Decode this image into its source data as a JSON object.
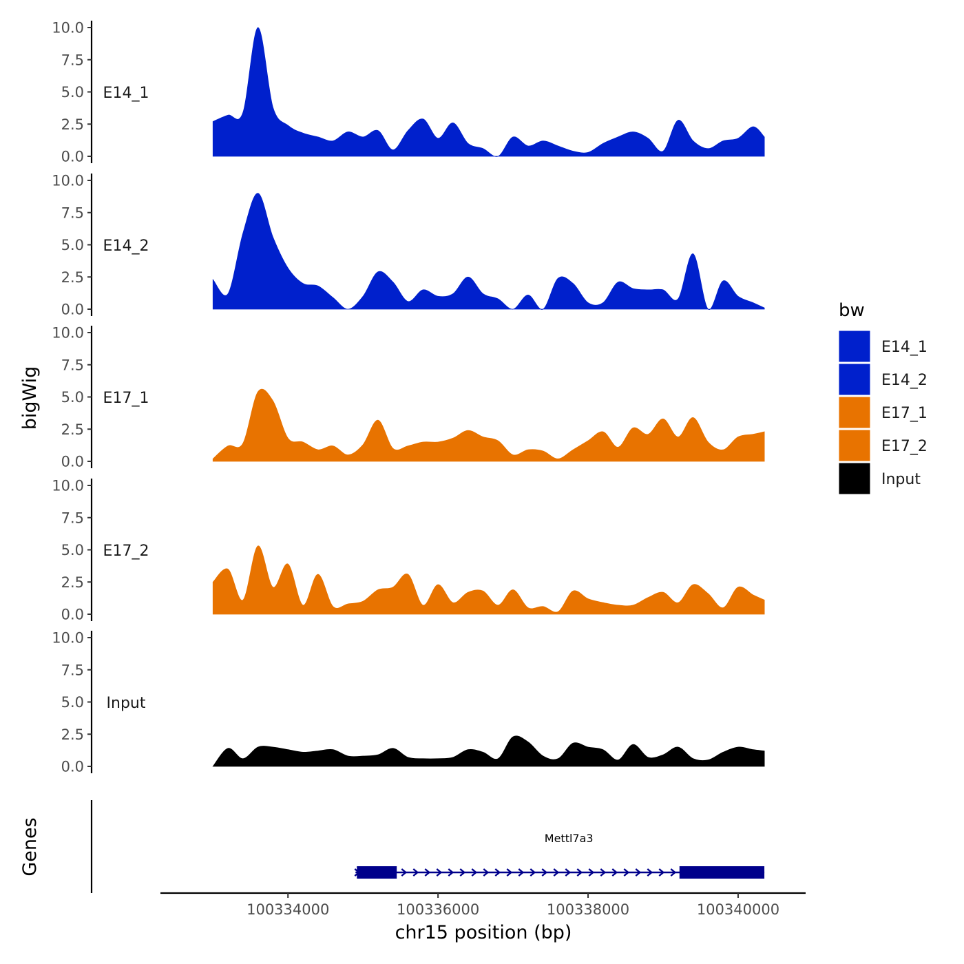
{
  "chart_data": {
    "type": "area",
    "title": "",
    "ylabel": "bigWig",
    "xlabel": "chr15 position (bp)",
    "ylim": [
      0,
      10
    ],
    "y_ticks": [
      "0.0",
      "2.5",
      "5.0",
      "7.5",
      "10.0"
    ],
    "y_tick_values": [
      0,
      2.5,
      5,
      7.5,
      10
    ],
    "xlim": [
      100332300,
      100340900
    ],
    "x_ticks": [
      100334000,
      100336000,
      100338000,
      100340000
    ],
    "x_tick_labels": [
      "100334000",
      "100336000",
      "100338000",
      "100340000"
    ],
    "legend": {
      "title": "bw",
      "position": "right",
      "entries": [
        {
          "label": "E14_1",
          "color": "#0020cc"
        },
        {
          "label": "E14_2",
          "color": "#0020cc"
        },
        {
          "label": "E17_1",
          "color": "#e87300"
        },
        {
          "label": "E17_2",
          "color": "#e87300"
        },
        {
          "label": "Input",
          "color": "#000000"
        }
      ]
    },
    "x": [
      100333000,
      100333200,
      100333400,
      100333600,
      100333800,
      100334000,
      100334200,
      100334400,
      100334600,
      100334800,
      100335000,
      100335200,
      100335400,
      100335600,
      100335800,
      100336000,
      100336200,
      100336400,
      100336600,
      100336800,
      100337000,
      100337200,
      100337400,
      100337600,
      100337800,
      100338000,
      100338200,
      100338400,
      100338600,
      100338800,
      100339000,
      100339200,
      100339400,
      100339600,
      100339800,
      100340000,
      100340200,
      100340350
    ],
    "series": [
      {
        "name": "E14_1",
        "color": "#0020cc",
        "values": [
          2.7,
          3.2,
          3.4,
          10.0,
          3.8,
          2.4,
          1.8,
          1.5,
          1.2,
          1.9,
          1.5,
          2.0,
          0.5,
          2.0,
          2.9,
          1.4,
          2.6,
          1.0,
          0.6,
          0.0,
          1.5,
          0.8,
          1.2,
          0.8,
          0.4,
          0.3,
          1.0,
          1.5,
          1.9,
          1.4,
          0.4,
          2.8,
          1.2,
          0.6,
          1.2,
          1.4,
          2.3,
          1.5
        ]
      },
      {
        "name": "E14_2",
        "color": "#0020cc",
        "values": [
          2.3,
          1.2,
          5.9,
          9.0,
          5.6,
          3.2,
          2.0,
          1.8,
          0.9,
          0.0,
          1.0,
          2.9,
          2.1,
          0.6,
          1.5,
          1.0,
          1.2,
          2.5,
          1.2,
          0.8,
          0.0,
          1.1,
          0.0,
          2.4,
          2.0,
          0.5,
          0.5,
          2.1,
          1.6,
          1.5,
          1.5,
          0.8,
          4.3,
          0.0,
          2.2,
          1.0,
          0.5,
          0.1
        ]
      },
      {
        "name": "E17_1",
        "color": "#e87300",
        "values": [
          0.2,
          1.2,
          1.4,
          5.4,
          4.7,
          1.8,
          1.5,
          0.9,
          1.2,
          0.5,
          1.3,
          3.2,
          1.0,
          1.2,
          1.5,
          1.5,
          1.8,
          2.4,
          1.9,
          1.6,
          0.5,
          0.9,
          0.8,
          0.2,
          0.9,
          1.6,
          2.3,
          1.1,
          2.6,
          2.1,
          3.3,
          1.9,
          3.4,
          1.5,
          0.9,
          1.9,
          2.1,
          2.3
        ]
      },
      {
        "name": "E17_2",
        "color": "#e87300",
        "values": [
          2.5,
          3.5,
          1.1,
          5.3,
          2.1,
          3.9,
          0.7,
          3.1,
          0.6,
          0.8,
          1.0,
          1.9,
          2.1,
          3.1,
          0.7,
          2.3,
          0.9,
          1.7,
          1.8,
          0.7,
          1.9,
          0.5,
          0.6,
          0.2,
          1.8,
          1.2,
          0.9,
          0.7,
          0.7,
          1.3,
          1.7,
          0.9,
          2.3,
          1.6,
          0.5,
          2.1,
          1.5,
          1.1
        ]
      },
      {
        "name": "Input",
        "color": "#000000",
        "values": [
          0.0,
          1.4,
          0.6,
          1.5,
          1.5,
          1.3,
          1.1,
          1.2,
          1.3,
          0.8,
          0.8,
          0.9,
          1.4,
          0.7,
          0.6,
          0.6,
          0.7,
          1.3,
          1.1,
          0.6,
          2.3,
          1.9,
          0.8,
          0.6,
          1.8,
          1.5,
          1.3,
          0.5,
          1.7,
          0.7,
          0.9,
          1.5,
          0.6,
          0.5,
          1.1,
          1.5,
          1.3,
          1.2
        ]
      }
    ],
    "genes_track": {
      "label": "Genes",
      "genes": [
        {
          "name": "Mettl7a3",
          "start": 100334900,
          "end": 100340350,
          "strand": "+",
          "exons": [
            [
              100334900,
              100335450
            ],
            [
              100339200,
              100340350
            ]
          ],
          "color": "#00008b"
        }
      ]
    }
  }
}
